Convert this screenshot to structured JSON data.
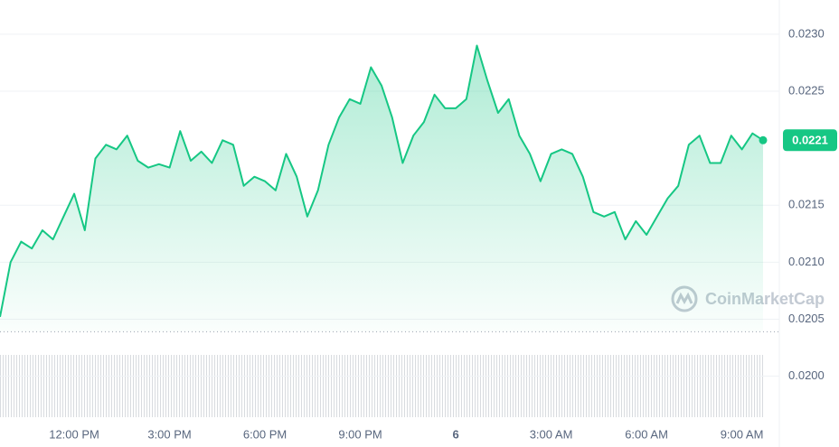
{
  "chart_data": {
    "type": "line",
    "x": [
      "9:40 AM",
      "10:00 AM",
      "10:20 AM",
      "10:40 AM",
      "11:00 AM",
      "11:20 AM",
      "11:40 AM",
      "12:00 PM",
      "12:20 PM",
      "12:40 PM",
      "1:00 PM",
      "1:20 PM",
      "1:40 PM",
      "2:00 PM",
      "2:20 PM",
      "2:40 PM",
      "3:00 PM",
      "3:20 PM",
      "3:40 PM",
      "4:00 PM",
      "4:20 PM",
      "4:40 PM",
      "5:00 PM",
      "5:20 PM",
      "5:40 PM",
      "6:00 PM",
      "6:20 PM",
      "6:40 PM",
      "7:00 PM",
      "7:20 PM",
      "7:40 PM",
      "8:00 PM",
      "8:20 PM",
      "8:40 PM",
      "9:00 PM",
      "9:20 PM",
      "9:40 PM",
      "10:00 PM",
      "10:20 PM",
      "10:40 PM",
      "11:00 PM",
      "11:20 PM",
      "11:40 PM",
      "12:00 AM",
      "12:20 AM",
      "12:40 AM",
      "1:00 AM",
      "1:20 AM",
      "1:40 AM",
      "2:00 AM",
      "2:20 AM",
      "2:40 AM",
      "3:00 AM",
      "3:20 AM",
      "3:40 AM",
      "4:00 AM",
      "4:20 AM",
      "4:40 AM",
      "5:00 AM",
      "5:20 AM",
      "5:40 AM",
      "6:00 AM",
      "6:20 AM",
      "6:40 AM",
      "7:00 AM",
      "7:20 AM",
      "7:40 AM",
      "8:00 AM",
      "8:20 AM",
      "8:40 AM",
      "9:00 AM",
      "9:20 AM",
      "9:40 AM"
    ],
    "values": [
      0.02052,
      0.021,
      0.02118,
      0.02112,
      0.02128,
      0.0212,
      0.0214,
      0.0216,
      0.02128,
      0.02191,
      0.02203,
      0.02199,
      0.02211,
      0.02189,
      0.02183,
      0.02186,
      0.02183,
      0.02215,
      0.02189,
      0.02197,
      0.02187,
      0.02207,
      0.02203,
      0.02167,
      0.02175,
      0.02171,
      0.02163,
      0.02195,
      0.02175,
      0.0214,
      0.02163,
      0.02203,
      0.02227,
      0.02243,
      0.02239,
      0.02271,
      0.02255,
      0.02227,
      0.02187,
      0.02211,
      0.02223,
      0.02247,
      0.02235,
      0.02235,
      0.02243,
      0.0229,
      0.02259,
      0.02231,
      0.02243,
      0.02211,
      0.02195,
      0.02171,
      0.02195,
      0.02199,
      0.02195,
      0.02175,
      0.02144,
      0.0214,
      0.02144,
      0.0212,
      0.02136,
      0.02124,
      0.0214,
      0.02156,
      0.02167,
      0.02203,
      0.02211,
      0.02187,
      0.02187,
      0.02211,
      0.02199,
      0.02213,
      0.02207
    ],
    "color": "#16c784",
    "ylim": [
      0.01964,
      0.0233
    ],
    "yticks": [
      {
        "value": 0.02,
        "label": "0.0200"
      },
      {
        "value": 0.0205,
        "label": "0.0205"
      },
      {
        "value": 0.021,
        "label": "0.0210"
      },
      {
        "value": 0.0215,
        "label": "0.0215"
      },
      {
        "value": 0.0225,
        "label": "0.0225"
      },
      {
        "value": 0.023,
        "label": "0.0230"
      }
    ],
    "xticks": [
      {
        "value": "12:00 PM",
        "label": "12:00 PM"
      },
      {
        "value": "3:00 PM",
        "label": "3:00 PM"
      },
      {
        "value": "6:00 PM",
        "label": "6:00 PM"
      },
      {
        "value": "9:00 PM",
        "label": "9:00 PM"
      },
      {
        "value": "12:00 AM",
        "label": "6"
      },
      {
        "value": "3:00 AM",
        "label": "3:00 AM"
      },
      {
        "value": "6:00 AM",
        "label": "6:00 AM"
      },
      {
        "value": "9:00 AM",
        "label": "9:00 AM"
      }
    ],
    "reference_line": 0.02039,
    "last_price_label": "0.0221",
    "watermark": "CoinMarketCap",
    "grid": true
  }
}
